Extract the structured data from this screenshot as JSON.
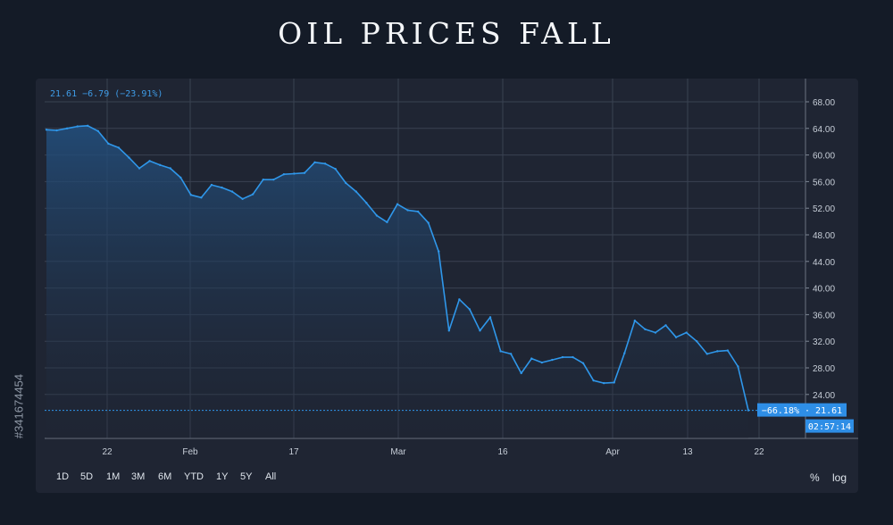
{
  "title": "OIL PRICES FALL",
  "summary": "21.61  −6.79 (−23.91%)",
  "price_tag": "−66.18% · 21.61",
  "time_tag": "02:57:14",
  "stock_id": "#341674454",
  "toolbar": {
    "ranges": [
      "1D",
      "5D",
      "1M",
      "3M",
      "6M",
      "YTD",
      "1Y",
      "5Y",
      "All"
    ],
    "percent": "%",
    "log": "log"
  },
  "colors": {
    "line": "#2f97ea",
    "tag_bg": "#2e8ee6",
    "background": "#141b27",
    "panel": "#1f2533",
    "grid": "#3a4252"
  },
  "chart_data": {
    "type": "area",
    "title": "OIL PRICES FALL",
    "xlabel": "",
    "ylabel": "",
    "ylim": [
      16,
      70
    ],
    "y_ticks": [
      "68.00",
      "64.00",
      "60.00",
      "56.00",
      "52.00",
      "48.00",
      "44.00",
      "40.00",
      "36.00",
      "32.00",
      "28.00",
      "24.00"
    ],
    "x_ticks": [
      "22",
      "Feb",
      "17",
      "Mar",
      "16",
      "Apr",
      "13",
      "22"
    ],
    "last_value": 21.61,
    "series": [
      {
        "values": [
          63.8,
          63.7,
          64.0,
          64.3,
          64.4,
          63.6,
          61.7,
          61.1,
          59.6,
          58.0,
          59.1,
          58.5,
          58.0,
          56.6,
          54.0,
          53.6,
          55.5,
          55.1,
          54.5,
          53.4,
          54.1,
          56.3,
          56.3,
          57.1,
          57.2,
          57.3,
          58.9,
          58.7,
          57.9,
          55.8,
          54.5,
          52.8,
          50.9,
          49.9,
          52.6,
          51.7,
          51.5,
          49.8,
          45.5,
          33.6,
          38.3,
          36.8,
          33.6,
          35.6,
          30.5,
          30.1,
          27.2,
          29.4,
          28.8,
          29.2,
          29.6,
          29.6,
          28.7,
          26.1,
          25.7,
          25.8,
          30.2,
          35.1,
          33.8,
          33.3,
          34.4,
          32.6,
          33.3,
          32.0,
          30.1,
          30.5,
          30.6,
          28.2,
          21.61
        ]
      }
    ]
  }
}
